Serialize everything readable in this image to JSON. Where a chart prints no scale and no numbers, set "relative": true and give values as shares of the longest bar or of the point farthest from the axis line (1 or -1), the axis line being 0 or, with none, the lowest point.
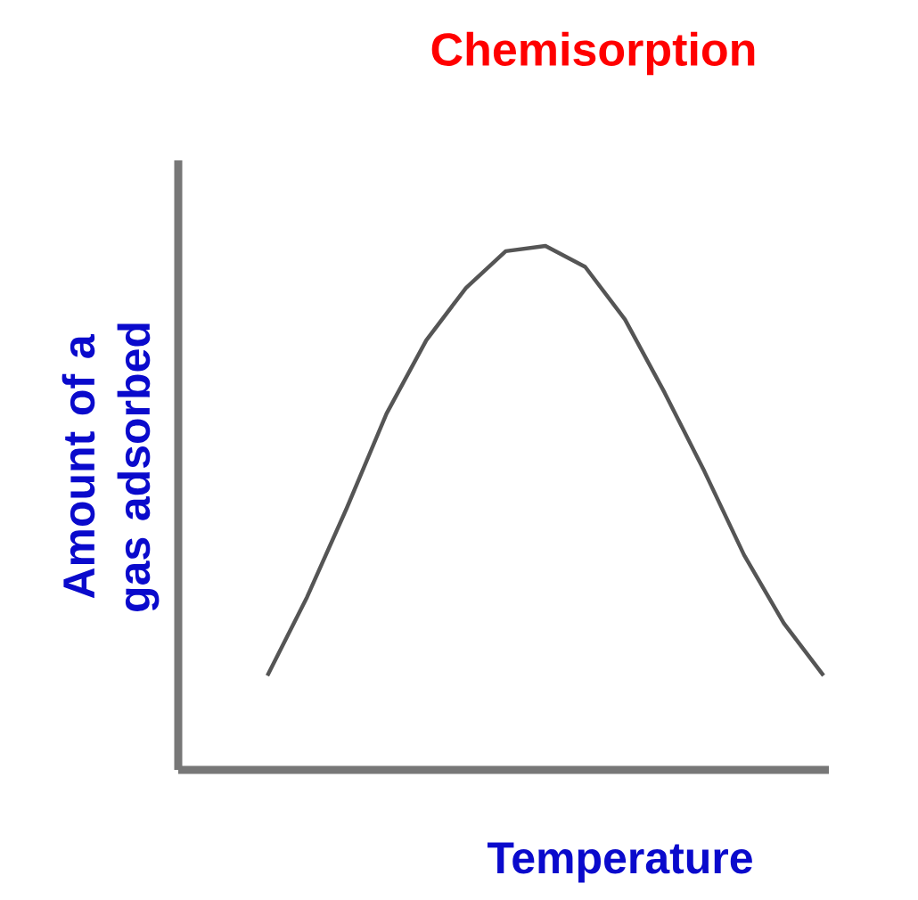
{
  "chart_data": {
    "type": "line",
    "title": "Chemisorption",
    "xlabel": "Temperature",
    "ylabel": "Amount of a gas adsorbed",
    "relative": true,
    "categories": [
      null,
      null,
      null,
      null,
      null,
      null,
      null,
      null,
      null,
      null,
      null,
      null,
      null,
      null,
      null
    ],
    "series": [
      {
        "color": "#555555",
        "values": [
          0.18,
          0.33,
          0.5,
          0.68,
          0.82,
          0.92,
          0.99,
          1.0,
          0.96,
          0.86,
          0.72,
          0.57,
          0.41,
          0.28,
          0.18
        ]
      }
    ]
  }
}
